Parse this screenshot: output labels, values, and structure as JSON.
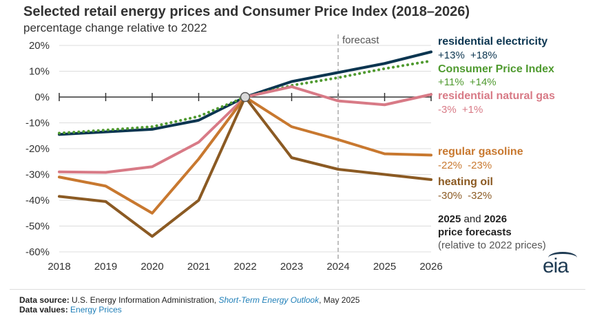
{
  "chart_data": {
    "type": "line",
    "title": "Selected retail energy prices and Consumer Price Index (2018–2026)",
    "subtitle": "percentage change relative to 2022",
    "xlabel": "",
    "ylabel": "",
    "x": [
      2018,
      2019,
      2020,
      2021,
      2022,
      2023,
      2024,
      2025,
      2026
    ],
    "xlim": [
      2018,
      2026
    ],
    "ylim": [
      -60,
      20
    ],
    "y_ticks": [
      20,
      10,
      0,
      -10,
      -20,
      -30,
      -40,
      -50,
      -60
    ],
    "y_tick_labels": [
      "20%",
      "10%",
      "0%",
      "-10%",
      "-20%",
      "-30%",
      "-40%",
      "-50%",
      "-60%"
    ],
    "x_tick_labels": [
      "2018",
      "2019",
      "2020",
      "2021",
      "2022",
      "2023",
      "2024",
      "2025",
      "2026"
    ],
    "grid": "horizontal",
    "forecast_start": 2024,
    "forecast_label": "forecast",
    "base_year": 2022,
    "series": [
      {
        "name": "residential electricity",
        "label_values": "+13% +18%",
        "color": "#0b3550",
        "style": "solid",
        "values": [
          -14.5,
          -13.5,
          -12.5,
          -9,
          0,
          6,
          9.5,
          13,
          17.5
        ]
      },
      {
        "name": "Consumer Price Index",
        "label_values": "+11% +14%",
        "color": "#4f9a2f",
        "style": "dotted",
        "values": [
          -14,
          -12.8,
          -11.5,
          -7.5,
          0,
          4.5,
          7.5,
          11,
          14
        ]
      },
      {
        "name": "residential natural gas",
        "label_values": "-3% +1%",
        "color": "#d87a86",
        "style": "solid",
        "values": [
          -29,
          -29.2,
          -27,
          -17.5,
          0,
          4,
          -1.5,
          -3,
          1
        ]
      },
      {
        "name": "regular gasoline",
        "label_values": "-22%   -23%",
        "color": "#c8782f",
        "style": "solid",
        "values": [
          -31,
          -34.5,
          -45,
          -24,
          0,
          -11.5,
          -16.5,
          -22,
          -22.5
        ]
      },
      {
        "name": "heating oil",
        "label_values": "-30%   -32%",
        "color": "#8b5a23",
        "style": "solid",
        "values": [
          -38.5,
          -40.5,
          -54,
          -40,
          0,
          -23.5,
          -28,
          -30,
          -32
        ]
      }
    ],
    "note": {
      "year_a": "2025",
      "and": "and",
      "year_b": "2026",
      "line2": "price forecasts",
      "line3": "(relative to 2022 prices)"
    }
  },
  "logo": "eia",
  "footer": {
    "source_label": "Data source:",
    "source_org": "U.S. Energy Information Administration, ",
    "source_pub": "Short-Term Energy Outlook",
    "source_date": ", May 2025",
    "values_label": "Data values:",
    "values_link": "Energy Prices"
  }
}
